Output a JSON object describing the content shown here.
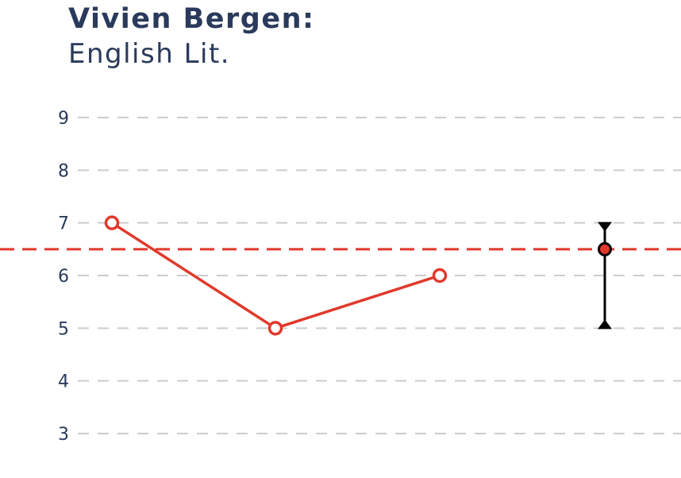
{
  "header": {
    "title": "Vivien Bergen:",
    "subtitle": "English Lit."
  },
  "chart_data": {
    "type": "line",
    "title": "Vivien Bergen:",
    "subtitle": "English Lit.",
    "xlabel": "",
    "ylabel": "",
    "ylim": [
      2.6,
      9.4
    ],
    "yticks": [
      3,
      4,
      5,
      6,
      7,
      8,
      9
    ],
    "grid": true,
    "series": [
      {
        "values": [
          7,
          5,
          6
        ],
        "color": "#e0392b",
        "marker": "open-circle"
      }
    ],
    "average": {
      "value": 6.5,
      "color": "#e0392b",
      "style": "dashed"
    },
    "range": {
      "min": 5,
      "max": 7,
      "mean": 6.5,
      "color": "#000000"
    },
    "colors": {
      "text": "#2a3a5c",
      "grid": "#cccccc",
      "accent": "#e0392b"
    }
  }
}
